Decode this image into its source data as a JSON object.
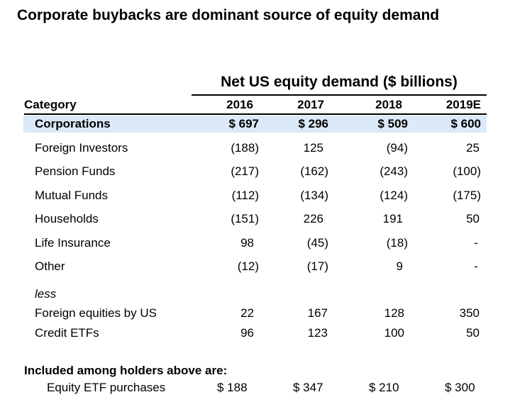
{
  "title": "Corporate buybacks are dominant source of equity demand",
  "group_header": "Net US equity demand ($ billions)",
  "columns": {
    "category": "Category",
    "years": [
      "2016",
      "2017",
      "2018",
      "2019E"
    ]
  },
  "rows": [
    {
      "label": "Corporations",
      "values": [
        "$ 697",
        "$ 296",
        "$ 509",
        "$ 600"
      ]
    },
    {
      "label": "Foreign Investors",
      "values": [
        "(188)",
        "125",
        "(94)",
        "25"
      ]
    },
    {
      "label": "Pension Funds",
      "values": [
        "(217)",
        "(162)",
        "(243)",
        "(100)"
      ]
    },
    {
      "label": "Mutual Funds",
      "values": [
        "(112)",
        "(134)",
        "(124)",
        "(175)"
      ]
    },
    {
      "label": "Households",
      "values": [
        "(151)",
        "226",
        "191",
        "50"
      ]
    },
    {
      "label": "Life Insurance",
      "values": [
        "98",
        "(45)",
        "(18)",
        "-"
      ]
    },
    {
      "label": "Other",
      "values": [
        "(12)",
        "(17)",
        "9",
        "-"
      ]
    }
  ],
  "less_label": "less",
  "less_rows": [
    {
      "label": "Foreign equities by US",
      "values": [
        "22",
        "167",
        "128",
        "350"
      ]
    },
    {
      "label": "Credit ETFs",
      "values": [
        "96",
        "123",
        "100",
        "50"
      ]
    }
  ],
  "included": {
    "heading": "Included among holders above are:",
    "label": "Equity ETF purchases",
    "values": [
      "$ 188",
      "$ 347",
      "$ 210",
      "$ 300"
    ]
  }
}
